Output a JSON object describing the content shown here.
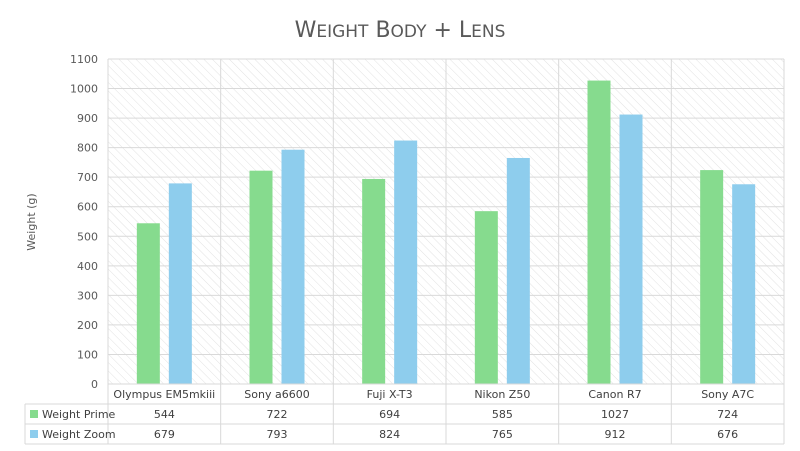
{
  "chart_data": {
    "type": "bar",
    "title_main": "W",
    "title_small": "EIGHT",
    "title_main2": "B",
    "title_small2": "ODY",
    "title_plus": "+",
    "title_main3": "L",
    "title_small3": "ENS",
    "ylabel": "Weight (g)",
    "ylim": [
      0,
      1100
    ],
    "yticks": [
      0,
      100,
      200,
      300,
      400,
      500,
      600,
      700,
      800,
      900,
      1000,
      1100
    ],
    "grid": true,
    "categories": [
      "Olympus EM5mkiii",
      "Sony a6600",
      "Fuji X-T3",
      "Nikon Z50",
      "Canon R7",
      "Sony A7C"
    ],
    "series": [
      {
        "name": "Weight Prime",
        "color": "#86DB8E",
        "values": [
          544,
          722,
          694,
          585,
          1027,
          724
        ]
      },
      {
        "name": "Weight Zoom",
        "color": "#8ECDED",
        "values": [
          679,
          793,
          824,
          765,
          912,
          676
        ]
      }
    ],
    "legend_placement": "data-table"
  }
}
